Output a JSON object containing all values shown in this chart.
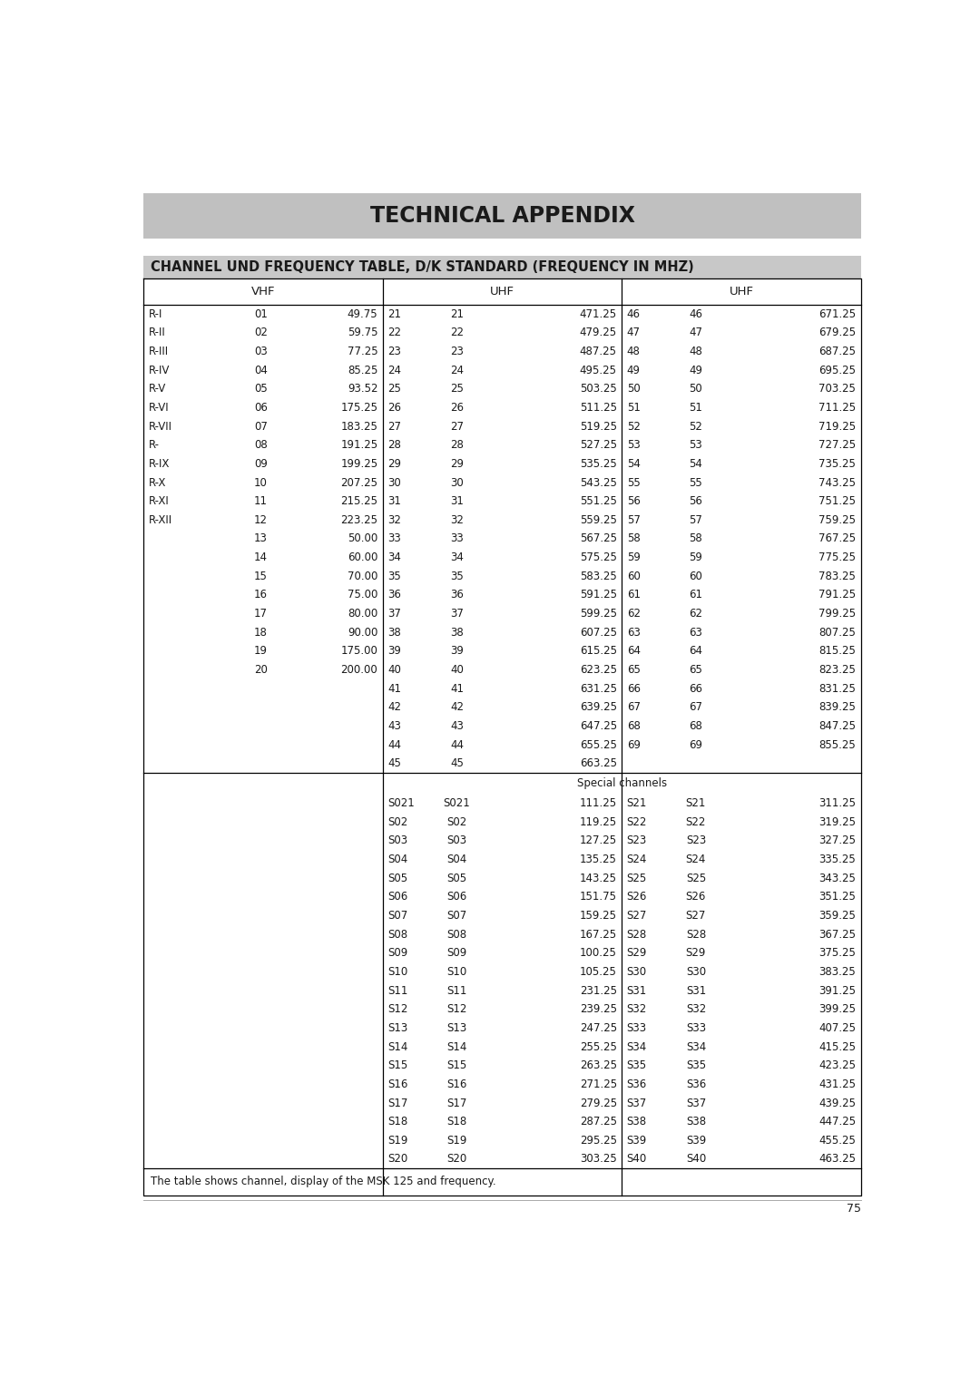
{
  "title": "TECHNICAL APPENDIX",
  "subtitle": "CHANNEL UND FREQUENCY TABLE, D/K STANDARD (FREQUENCY IN MHZ)",
  "footer": "The table shows channel, display of the MSK 125 and frequency.",
  "page_number": "75",
  "vhf_header": "VHF",
  "uhf_header1": "UHF",
  "uhf_header2": "UHF",
  "vhf_data": [
    [
      "R-I",
      "01",
      "49.75"
    ],
    [
      "R-II",
      "02",
      "59.75"
    ],
    [
      "R-III",
      "03",
      "77.25"
    ],
    [
      "R-IV",
      "04",
      "85.25"
    ],
    [
      "R-V",
      "05",
      "93.52"
    ],
    [
      "R-VI",
      "06",
      "175.25"
    ],
    [
      "R-VII",
      "07",
      "183.25"
    ],
    [
      "R-",
      "08",
      "191.25"
    ],
    [
      "R-IX",
      "09",
      "199.25"
    ],
    [
      "R-X",
      "10",
      "207.25"
    ],
    [
      "R-XI",
      "11",
      "215.25"
    ],
    [
      "R-XII",
      "12",
      "223.25"
    ],
    [
      "",
      "13",
      "50.00"
    ],
    [
      "",
      "14",
      "60.00"
    ],
    [
      "",
      "15",
      "70.00"
    ],
    [
      "",
      "16",
      "75.00"
    ],
    [
      "",
      "17",
      "80.00"
    ],
    [
      "",
      "18",
      "90.00"
    ],
    [
      "",
      "19",
      "175.00"
    ],
    [
      "",
      "20",
      "200.00"
    ]
  ],
  "uhf_data1": [
    [
      "21",
      "21",
      "471.25"
    ],
    [
      "22",
      "22",
      "479.25"
    ],
    [
      "23",
      "23",
      "487.25"
    ],
    [
      "24",
      "24",
      "495.25"
    ],
    [
      "25",
      "25",
      "503.25"
    ],
    [
      "26",
      "26",
      "511.25"
    ],
    [
      "27",
      "27",
      "519.25"
    ],
    [
      "28",
      "28",
      "527.25"
    ],
    [
      "29",
      "29",
      "535.25"
    ],
    [
      "30",
      "30",
      "543.25"
    ],
    [
      "31",
      "31",
      "551.25"
    ],
    [
      "32",
      "32",
      "559.25"
    ],
    [
      "33",
      "33",
      "567.25"
    ],
    [
      "34",
      "34",
      "575.25"
    ],
    [
      "35",
      "35",
      "583.25"
    ],
    [
      "36",
      "36",
      "591.25"
    ],
    [
      "37",
      "37",
      "599.25"
    ],
    [
      "38",
      "38",
      "607.25"
    ],
    [
      "39",
      "39",
      "615.25"
    ],
    [
      "40",
      "40",
      "623.25"
    ],
    [
      "41",
      "41",
      "631.25"
    ],
    [
      "42",
      "42",
      "639.25"
    ],
    [
      "43",
      "43",
      "647.25"
    ],
    [
      "44",
      "44",
      "655.25"
    ],
    [
      "45",
      "45",
      "663.25"
    ]
  ],
  "uhf_data2": [
    [
      "46",
      "46",
      "671.25"
    ],
    [
      "47",
      "47",
      "679.25"
    ],
    [
      "48",
      "48",
      "687.25"
    ],
    [
      "49",
      "49",
      "695.25"
    ],
    [
      "50",
      "50",
      "703.25"
    ],
    [
      "51",
      "51",
      "711.25"
    ],
    [
      "52",
      "52",
      "719.25"
    ],
    [
      "53",
      "53",
      "727.25"
    ],
    [
      "54",
      "54",
      "735.25"
    ],
    [
      "55",
      "55",
      "743.25"
    ],
    [
      "56",
      "56",
      "751.25"
    ],
    [
      "57",
      "57",
      "759.25"
    ],
    [
      "58",
      "58",
      "767.25"
    ],
    [
      "59",
      "59",
      "775.25"
    ],
    [
      "60",
      "60",
      "783.25"
    ],
    [
      "61",
      "61",
      "791.25"
    ],
    [
      "62",
      "62",
      "799.25"
    ],
    [
      "63",
      "63",
      "807.25"
    ],
    [
      "64",
      "64",
      "815.25"
    ],
    [
      "65",
      "65",
      "823.25"
    ],
    [
      "66",
      "66",
      "831.25"
    ],
    [
      "67",
      "67",
      "839.25"
    ],
    [
      "68",
      "68",
      "847.25"
    ],
    [
      "69",
      "69",
      "855.25"
    ]
  ],
  "special_data1": [
    [
      "S021",
      "S021",
      "111.25"
    ],
    [
      "S02",
      "S02",
      "119.25"
    ],
    [
      "S03",
      "S03",
      "127.25"
    ],
    [
      "S04",
      "S04",
      "135.25"
    ],
    [
      "S05",
      "S05",
      "143.25"
    ],
    [
      "S06",
      "S06",
      "151.75"
    ],
    [
      "S07",
      "S07",
      "159.25"
    ],
    [
      "S08",
      "S08",
      "167.25"
    ],
    [
      "S09",
      "S09",
      "100.25"
    ],
    [
      "S10",
      "S10",
      "105.25"
    ],
    [
      "S11",
      "S11",
      "231.25"
    ],
    [
      "S12",
      "S12",
      "239.25"
    ],
    [
      "S13",
      "S13",
      "247.25"
    ],
    [
      "S14",
      "S14",
      "255.25"
    ],
    [
      "S15",
      "S15",
      "263.25"
    ],
    [
      "S16",
      "S16",
      "271.25"
    ],
    [
      "S17",
      "S17",
      "279.25"
    ],
    [
      "S18",
      "S18",
      "287.25"
    ],
    [
      "S19",
      "S19",
      "295.25"
    ],
    [
      "S20",
      "S20",
      "303.25"
    ]
  ],
  "special_data2": [
    [
      "S21",
      "S21",
      "311.25"
    ],
    [
      "S22",
      "S22",
      "319.25"
    ],
    [
      "S23",
      "S23",
      "327.25"
    ],
    [
      "S24",
      "S24",
      "335.25"
    ],
    [
      "S25",
      "S25",
      "343.25"
    ],
    [
      "S26",
      "S26",
      "351.25"
    ],
    [
      "S27",
      "S27",
      "359.25"
    ],
    [
      "S28",
      "S28",
      "367.25"
    ],
    [
      "S29",
      "S29",
      "375.25"
    ],
    [
      "S30",
      "S30",
      "383.25"
    ],
    [
      "S31",
      "S31",
      "391.25"
    ],
    [
      "S32",
      "S32",
      "399.25"
    ],
    [
      "S33",
      "S33",
      "407.25"
    ],
    [
      "S34",
      "S34",
      "415.25"
    ],
    [
      "S35",
      "S35",
      "423.25"
    ],
    [
      "S36",
      "S36",
      "431.25"
    ],
    [
      "S37",
      "S37",
      "439.25"
    ],
    [
      "S38",
      "S38",
      "447.25"
    ],
    [
      "S39",
      "S39",
      "455.25"
    ],
    [
      "S40",
      "S40",
      "463.25"
    ]
  ],
  "bg_title": "#c0c0c0",
  "bg_subtitle": "#c8c8c8",
  "bg_page": "#ffffff",
  "text_color": "#1a1a1a",
  "border_color": "#000000",
  "font_size_title": 17,
  "font_size_subtitle": 10.5,
  "font_size_header": 9.5,
  "font_size_table": 8.5,
  "font_size_footer": 8.5,
  "font_size_page": 9
}
